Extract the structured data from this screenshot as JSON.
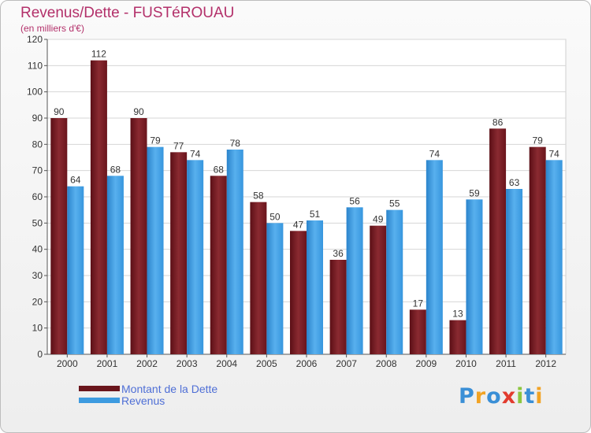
{
  "chart_data": {
    "type": "bar",
    "title": "Revenus/Dette - FUSTéROUAU",
    "subtitle": "(en milliers d'€)",
    "categories": [
      "2000",
      "2001",
      "2002",
      "2003",
      "2004",
      "2005",
      "2006",
      "2007",
      "2008",
      "2009",
      "2010",
      "2011",
      "2012"
    ],
    "series": [
      {
        "name": "Montant de la Dette",
        "color": "#7a1d24",
        "values": [
          90,
          112,
          90,
          77,
          68,
          58,
          47,
          36,
          49,
          17,
          13,
          86,
          79
        ]
      },
      {
        "name": "Revenus",
        "color": "#3d9be0",
        "values": [
          64,
          68,
          79,
          74,
          78,
          50,
          51,
          56,
          55,
          74,
          59,
          63,
          74
        ]
      }
    ],
    "ylim": [
      0,
      120
    ],
    "yticks": [
      0,
      10,
      20,
      30,
      40,
      50,
      60,
      70,
      80,
      90,
      100,
      110,
      120
    ],
    "grid": true,
    "legend_position": "bottom-left"
  },
  "logo": {
    "letters": [
      "P",
      "r",
      "o",
      "x",
      "i",
      "t",
      "i"
    ],
    "colors": [
      "#3a8fd6",
      "#f2a324",
      "#3a8fd6",
      "#e23b2e",
      "#8cc63f",
      "#3a8fd6",
      "#f2a324"
    ]
  }
}
